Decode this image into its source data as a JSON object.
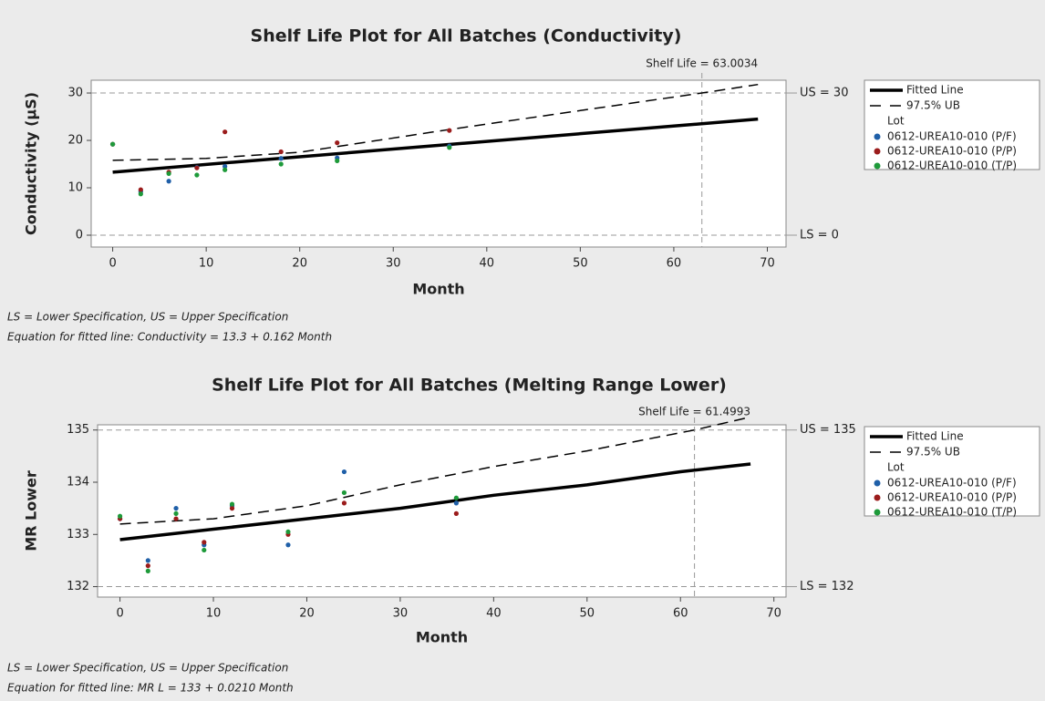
{
  "chart_data": [
    {
      "type": "scatter",
      "title": "Shelf Life Plot for All Batches (Conductivity)",
      "x_label": "Month",
      "y_label": "Conductivity (µS)",
      "xlim": [
        -2.3,
        72
      ],
      "ylim": [
        -2.5,
        32.7
      ],
      "xticks": [
        0,
        10,
        20,
        30,
        40,
        50,
        60,
        70
      ],
      "yticks": [
        0,
        10,
        20,
        30
      ],
      "shelf_life": {
        "value": 63.0034,
        "label": "Shelf Life = 63.0034"
      },
      "spec_lines": [
        {
          "value": 30,
          "label": "US = 30"
        },
        {
          "value": 0,
          "label": "LS = 0"
        }
      ],
      "fit_lines": [
        {
          "name": "Fitted Line",
          "style": "solid",
          "color": "#000000",
          "x": [
            0,
            69
          ],
          "values": [
            13.3,
            24.5
          ]
        },
        {
          "name": "97.5% UB",
          "style": "dashed",
          "color": "#000000",
          "x": [
            0,
            10,
            20,
            36,
            50,
            63,
            69
          ],
          "values": [
            15.8,
            16.2,
            17.5,
            22.3,
            26.3,
            30,
            31.8
          ]
        }
      ],
      "legend_title": "Lot",
      "series": [
        {
          "name": "0612-UREA10-010 (P/F)",
          "color": "#1f5fa8",
          "x": [
            0,
            3,
            6,
            9,
            12,
            18,
            24,
            36
          ],
          "values": [
            19.2,
            9.2,
            11.4,
            14.3,
            14.5,
            16.2,
            16.3,
            18.8
          ]
        },
        {
          "name": "0612-UREA10-010 (P/P)",
          "color": "#9b1c1c",
          "x": [
            0,
            3,
            6,
            9,
            12,
            18,
            24,
            36
          ],
          "values": [
            19.2,
            9.6,
            13.3,
            14.2,
            21.8,
            17.6,
            19.5,
            22.1
          ]
        },
        {
          "name": "0612-UREA10-010 (T/P)",
          "color": "#1e9a3a",
          "x": [
            0,
            3,
            6,
            9,
            12,
            18,
            24,
            36
          ],
          "values": [
            19.2,
            8.7,
            13.0,
            12.7,
            13.8,
            15.0,
            15.7,
            18.5
          ]
        }
      ],
      "notes": [
        "LS = Lower Specification, US = Upper Specification",
        "Equation for fitted line: Conductivity = 13.3 + 0.162 Month"
      ]
    },
    {
      "type": "scatter",
      "title": "Shelf Life Plot for All Batches (Melting Range Lower)",
      "x_label": "Month",
      "y_label": "MR Lower",
      "xlim": [
        -2.4,
        71.3
      ],
      "ylim": [
        131.8,
        135.1
      ],
      "xticks": [
        0,
        10,
        20,
        30,
        40,
        50,
        60,
        70
      ],
      "yticks": [
        132,
        133,
        134,
        135
      ],
      "shelf_life": {
        "value": 61.4993,
        "label": "Shelf Life = 61.4993"
      },
      "spec_lines": [
        {
          "value": 135,
          "label": "US = 135"
        },
        {
          "value": 132,
          "label": "LS = 132"
        }
      ],
      "fit_lines": [
        {
          "name": "Fitted Line",
          "style": "solid",
          "color": "#000000",
          "x": [
            0,
            10,
            20,
            30,
            40,
            50,
            60,
            67.5
          ],
          "values": [
            132.9,
            133.1,
            133.3,
            133.5,
            133.75,
            133.95,
            134.2,
            134.35
          ]
        },
        {
          "name": "97.5% UB",
          "style": "dashed",
          "color": "#000000",
          "x": [
            0,
            10,
            20,
            30,
            40,
            50,
            61.5,
            67.5
          ],
          "values": [
            133.2,
            133.3,
            133.55,
            133.95,
            134.3,
            134.6,
            135,
            135.25
          ]
        }
      ],
      "legend_title": "Lot",
      "series": [
        {
          "name": "0612-UREA10-010 (P/F)",
          "color": "#1f5fa8",
          "x": [
            0,
            3,
            6,
            9,
            12,
            18,
            24,
            36
          ],
          "values": [
            133.3,
            132.5,
            133.5,
            132.8,
            133.55,
            132.8,
            134.2,
            133.6
          ]
        },
        {
          "name": "0612-UREA10-010 (P/P)",
          "color": "#9b1c1c",
          "x": [
            0,
            3,
            6,
            9,
            12,
            18,
            24,
            36
          ],
          "values": [
            133.3,
            132.4,
            133.3,
            132.85,
            133.5,
            133.0,
            133.6,
            133.4
          ]
        },
        {
          "name": "0612-UREA10-010 (T/P)",
          "color": "#1e9a3a",
          "x": [
            0,
            3,
            6,
            9,
            12,
            18,
            24,
            36
          ],
          "values": [
            133.35,
            132.3,
            133.4,
            132.7,
            133.58,
            133.05,
            133.8,
            133.7
          ]
        }
      ],
      "notes": [
        "LS = Lower Specification, US = Upper Specification",
        "Equation for fitted line: MR L = 133 + 0.0210 Month"
      ]
    }
  ]
}
